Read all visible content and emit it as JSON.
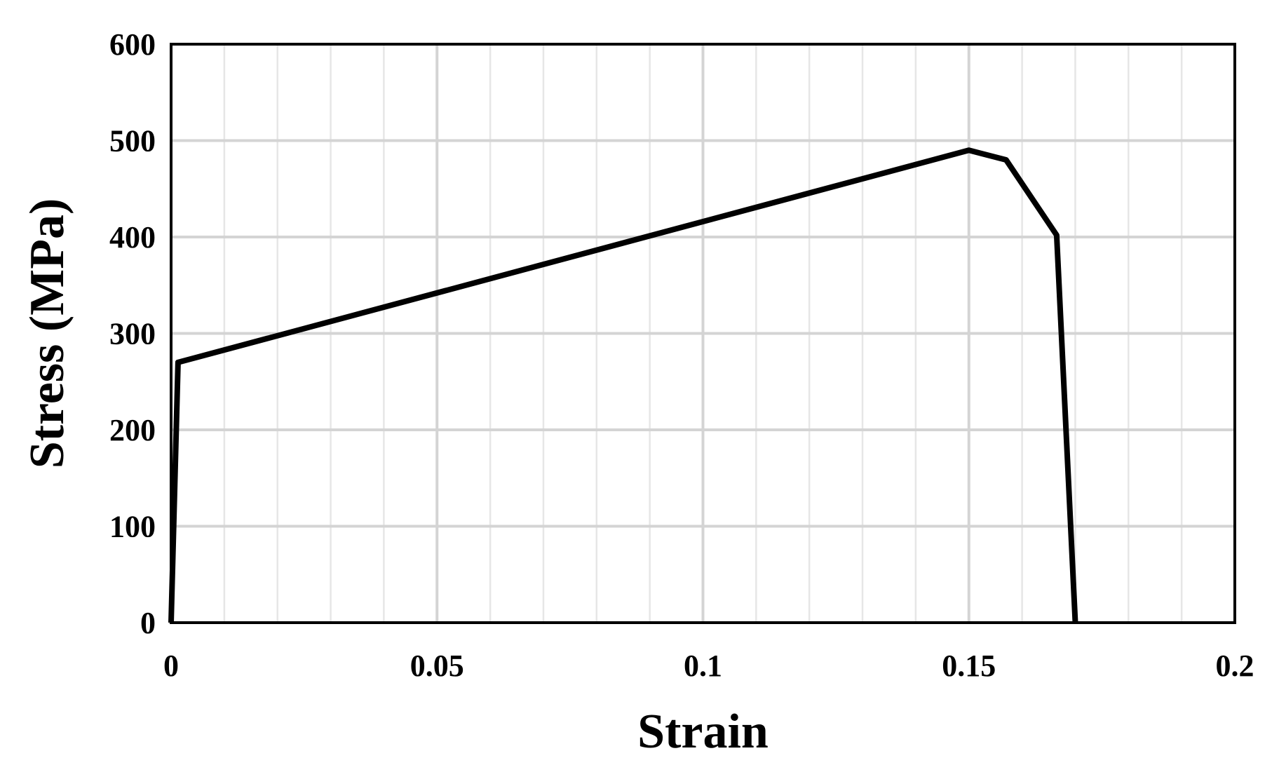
{
  "chart_data": {
    "type": "line",
    "title": "",
    "xlabel": "Strain",
    "ylabel": "Stress (MPa)",
    "xlim": [
      0,
      0.2
    ],
    "ylim": [
      0,
      600
    ],
    "xticks": [
      0,
      0.05,
      0.1,
      0.15,
      0.2
    ],
    "xtick_labels": [
      "0",
      "0.05",
      "0.1",
      "0.15",
      "0.2"
    ],
    "yticks": [
      0,
      100,
      200,
      300,
      400,
      500,
      600
    ],
    "ytick_labels": [
      "0",
      "100",
      "200",
      "300",
      "400",
      "500",
      "600"
    ],
    "x_minor_step": 0.01,
    "grid": true,
    "legend": "none",
    "series": [
      {
        "color": "#000000",
        "x": [
          0,
          0.0013,
          0.15,
          0.157,
          0.1665,
          0.17
        ],
        "y": [
          0,
          270,
          490,
          480,
          402,
          0
        ]
      }
    ]
  }
}
